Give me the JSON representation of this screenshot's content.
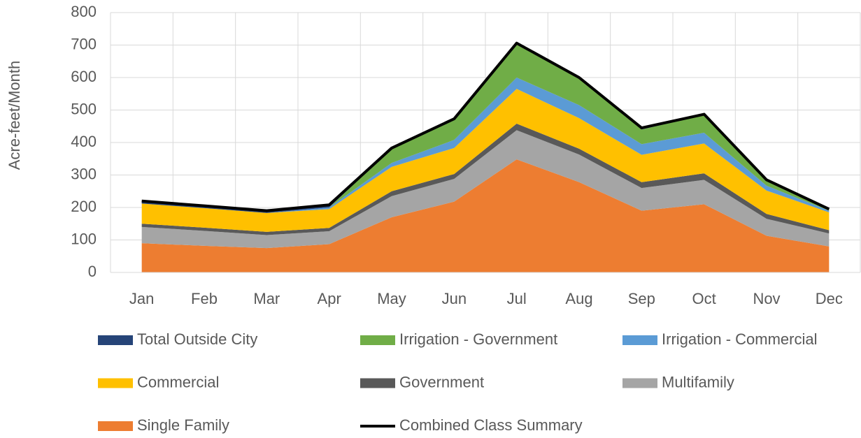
{
  "chart_data": {
    "type": "stacked_area",
    "y_label": "Acre-feet/Month",
    "categories": [
      "Jan",
      "Feb",
      "Mar",
      "Apr",
      "May",
      "Jun",
      "Jul",
      "Aug",
      "Sep",
      "Oct",
      "Nov",
      "Dec"
    ],
    "ylim": [
      0,
      800
    ],
    "yticks": [
      0,
      100,
      200,
      300,
      400,
      500,
      600,
      700,
      800
    ],
    "grid": true,
    "legend": "bottom",
    "series": [
      {
        "name": "Total Outside City",
        "color": "#264478",
        "type": "area",
        "values": [
          8,
          7,
          7,
          8,
          1,
          0,
          1,
          0,
          5,
          2,
          3,
          0
        ]
      },
      {
        "name": "Irrigation - Government",
        "color": "#70ad47",
        "type": "area",
        "values": [
          0,
          0,
          0,
          0,
          45,
          65,
          105,
          85,
          45,
          55,
          15,
          5
        ]
      },
      {
        "name": "Irrigation - Commercial",
        "color": "#5b9bd5",
        "type": "area",
        "values": [
          0,
          0,
          0,
          5,
          12,
          25,
          35,
          40,
          33,
          33,
          15,
          5
        ]
      },
      {
        "name": "Commercial",
        "color": "#ffc000",
        "type": "area",
        "values": [
          62,
          60,
          58,
          58,
          75,
          80,
          107,
          94,
          84,
          92,
          72,
          55
        ]
      },
      {
        "name": "Government",
        "color": "#595959",
        "type": "area",
        "values": [
          10,
          10,
          10,
          10,
          15,
          15,
          20,
          18,
          18,
          20,
          15,
          10
        ]
      },
      {
        "name": "Multifamily",
        "color": "#a5a5a5",
        "type": "area",
        "values": [
          50,
          46,
          40,
          40,
          65,
          70,
          90,
          85,
          70,
          75,
          52,
          40
        ]
      },
      {
        "name": "Single Family",
        "color": "#ed7d31",
        "type": "area",
        "values": [
          90,
          82,
          75,
          87,
          170,
          218,
          348,
          278,
          190,
          210,
          113,
          80
        ]
      },
      {
        "name": "Combined Class Summary",
        "color": "#000000",
        "type": "line",
        "values": [
          220,
          205,
          190,
          208,
          383,
          473,
          706,
          600,
          445,
          487,
          285,
          195
        ]
      }
    ]
  }
}
